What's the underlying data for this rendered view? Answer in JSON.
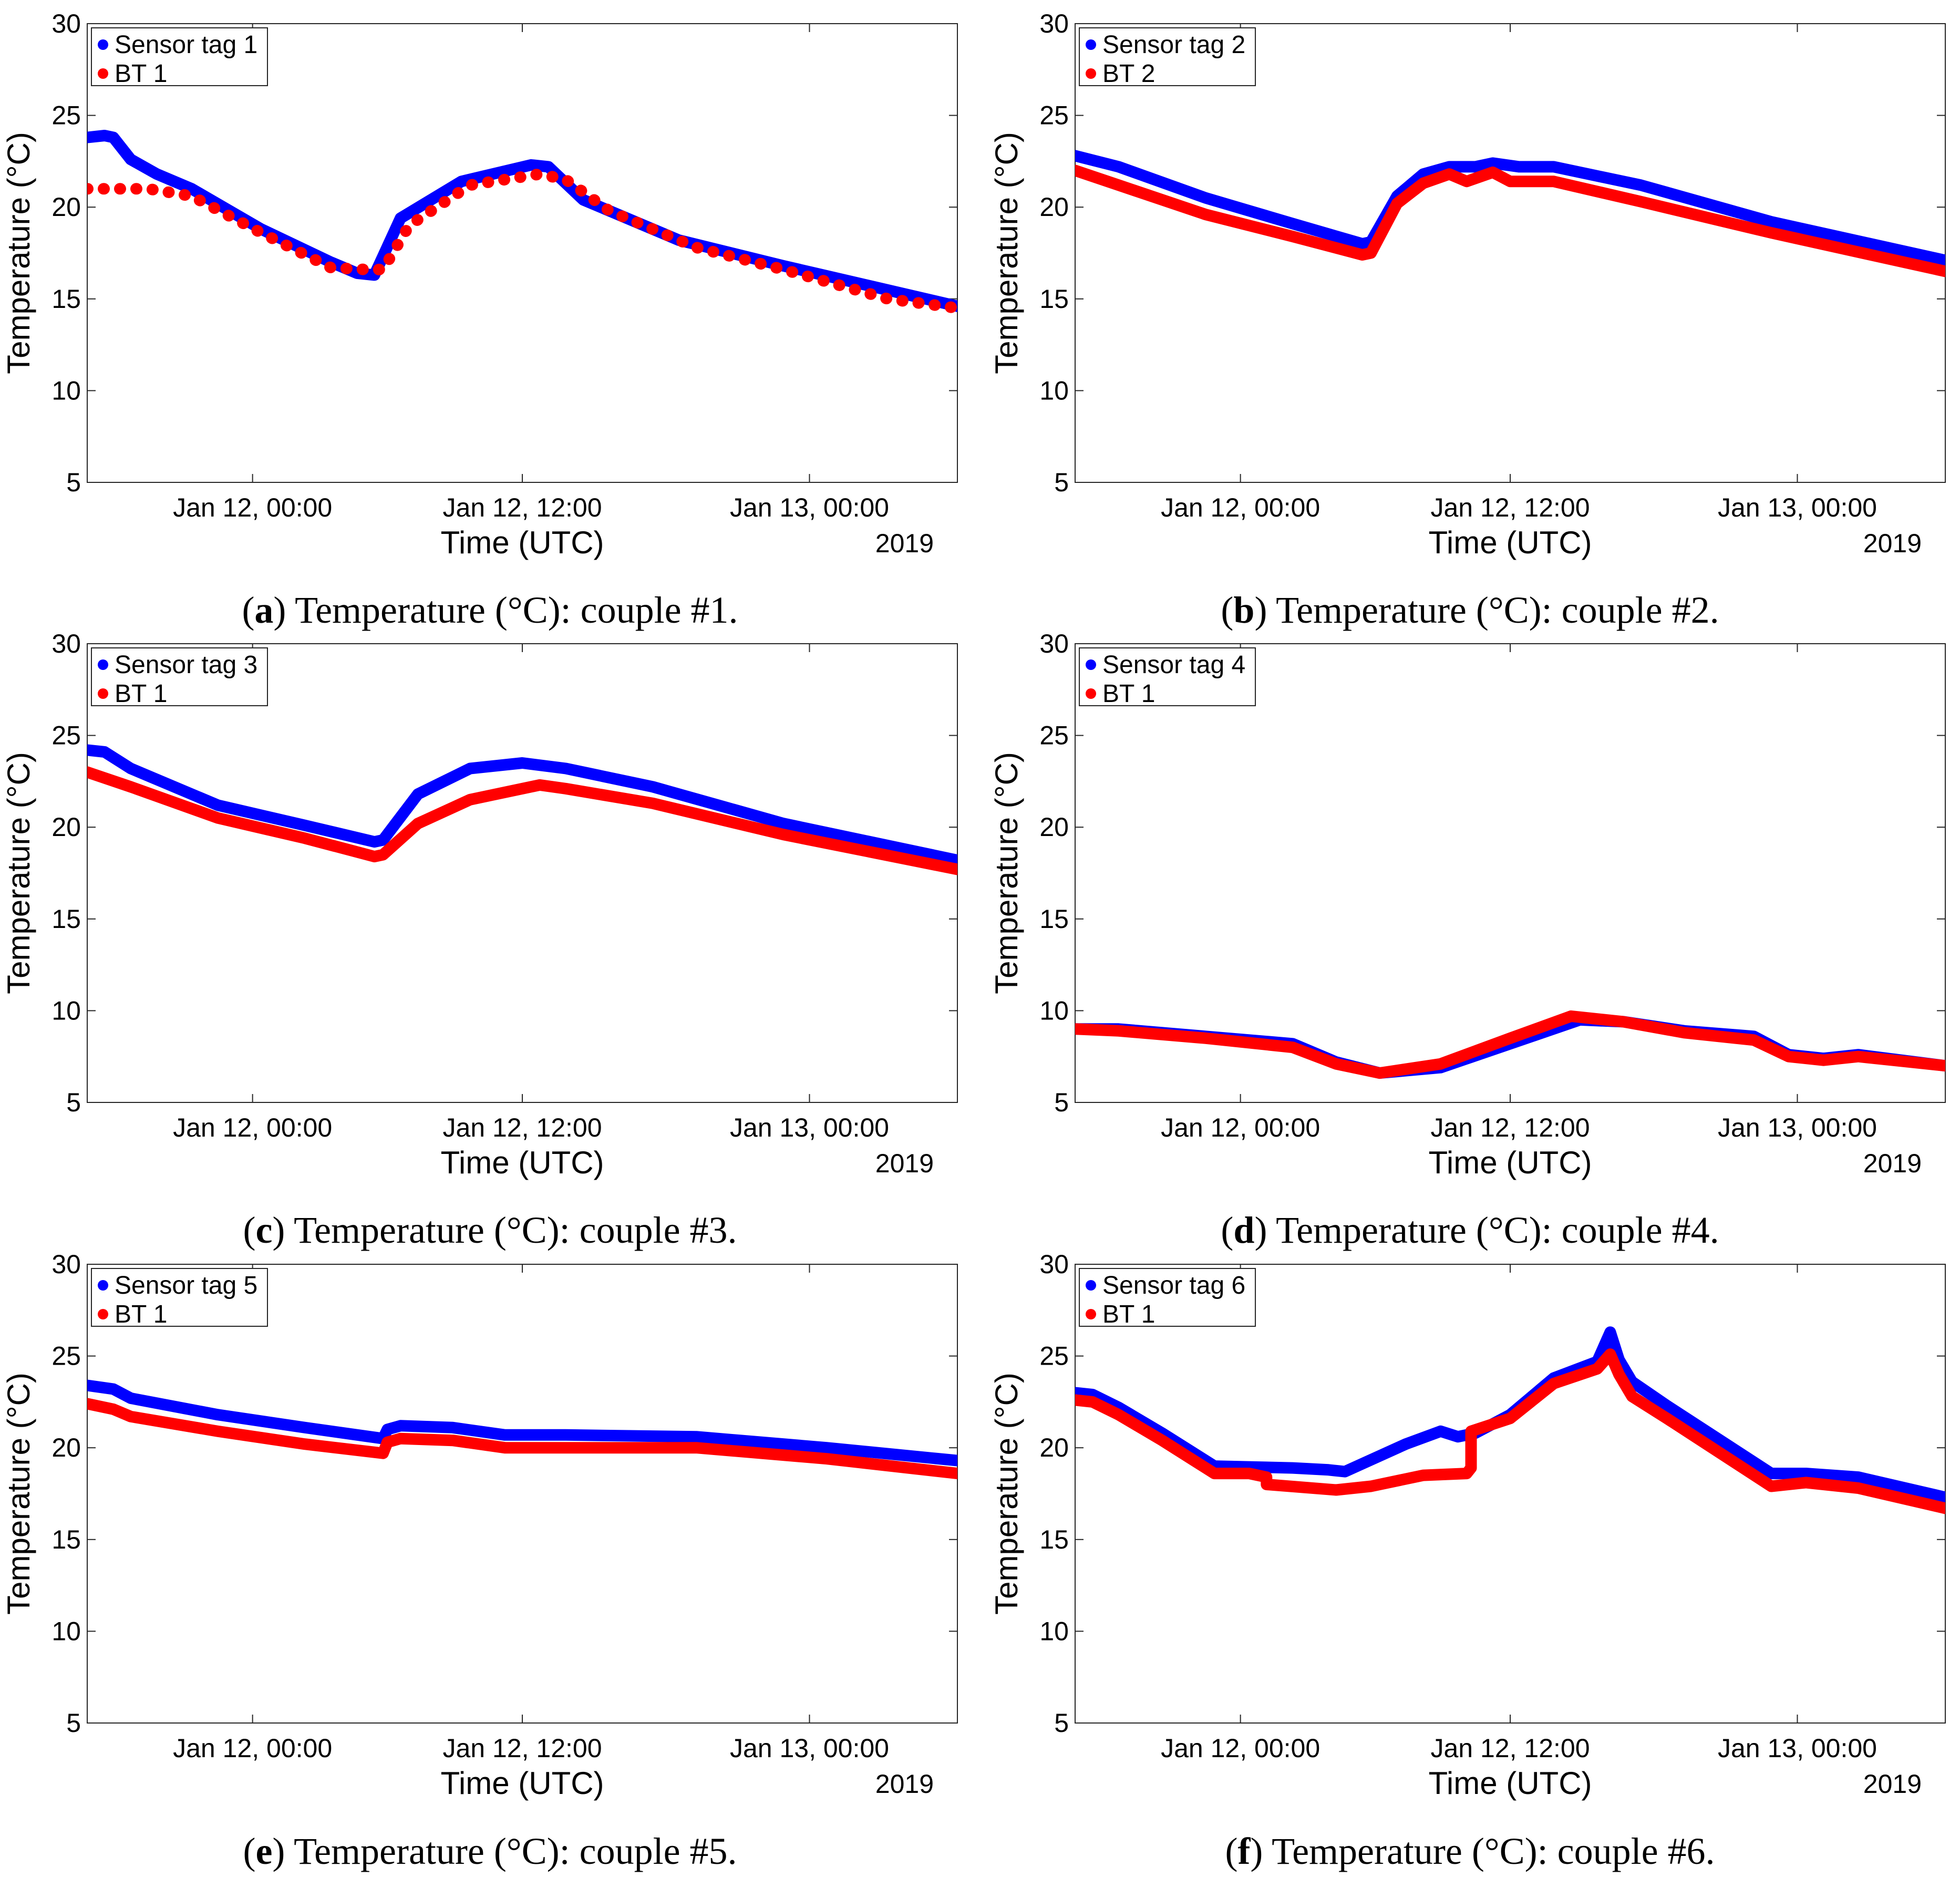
{
  "colors": {
    "sensor": "#0000ff",
    "bt": "#ff0000"
  },
  "chart_data": [
    {
      "type": "scatter",
      "panel": "a",
      "caption_letter": "a",
      "caption_text": "Temperature (°C): couple #1.",
      "ylabel": "Temperature (°C)",
      "xlabel": "Time (UTC)",
      "year_label": "2019",
      "ylim": [
        5,
        30
      ],
      "yticks": [
        5,
        10,
        15,
        20,
        25,
        30
      ],
      "xlim": [
        0,
        1
      ],
      "xticks": [
        {
          "x": 0.19,
          "label": "Jan 12, 00:00"
        },
        {
          "x": 0.5,
          "label": "Jan 12, 12:00"
        },
        {
          "x": 0.83,
          "label": "Jan 13, 00:00"
        }
      ],
      "legend": [
        "Sensor tag 1",
        "BT 1"
      ],
      "series": [
        {
          "name": "Sensor tag 1",
          "color": "#0000ff",
          "dashed": false,
          "x": [
            0,
            0.02,
            0.03,
            0.05,
            0.08,
            0.12,
            0.2,
            0.28,
            0.31,
            0.33,
            0.36,
            0.43,
            0.51,
            0.53,
            0.57,
            0.68,
            0.8,
            1
          ],
          "y": [
            23.8,
            23.9,
            23.8,
            22.6,
            21.8,
            21,
            18.8,
            17,
            16.4,
            16.3,
            19.4,
            21.4,
            22.3,
            22.2,
            20.4,
            18.2,
            16.8,
            14.6
          ]
        },
        {
          "name": "BT 1",
          "color": "#ff0000",
          "dashed": true,
          "x": [
            0,
            0.02,
            0.04,
            0.07,
            0.12,
            0.2,
            0.28,
            0.32,
            0.34,
            0.37,
            0.44,
            0.52,
            0.55,
            0.6,
            0.7,
            0.8,
            0.92,
            1
          ],
          "y": [
            21,
            21,
            21,
            21,
            20.6,
            18.6,
            16.7,
            16.6,
            16.6,
            19,
            21.2,
            21.8,
            21.5,
            19.8,
            17.8,
            16.6,
            15,
            14.5
          ]
        }
      ]
    },
    {
      "type": "scatter",
      "panel": "b",
      "caption_letter": "b",
      "caption_text": "Temperature (°C): couple #2.",
      "ylabel": "Temperature (°C)",
      "xlabel": "Time (UTC)",
      "year_label": "2019",
      "ylim": [
        5,
        30
      ],
      "yticks": [
        5,
        10,
        15,
        20,
        25,
        30
      ],
      "xlim": [
        0,
        1
      ],
      "xticks": [
        {
          "x": 0.19,
          "label": "Jan 12, 00:00"
        },
        {
          "x": 0.5,
          "label": "Jan 12, 12:00"
        },
        {
          "x": 0.83,
          "label": "Jan 13, 00:00"
        }
      ],
      "legend": [
        "Sensor tag 2",
        "BT 2"
      ],
      "series": [
        {
          "name": "Sensor tag 2",
          "color": "#0000ff",
          "dashed": false,
          "x": [
            0,
            0.05,
            0.15,
            0.25,
            0.33,
            0.34,
            0.37,
            0.4,
            0.43,
            0.46,
            0.48,
            0.51,
            0.55,
            0.65,
            0.8,
            1
          ],
          "y": [
            22.8,
            22.2,
            20.5,
            19.1,
            18,
            18.1,
            20.6,
            21.8,
            22.2,
            22.2,
            22.4,
            22.2,
            22.2,
            21.2,
            19.2,
            17.1
          ]
        },
        {
          "name": "BT 2",
          "color": "#ff0000",
          "dashed": false,
          "x": [
            0,
            0.05,
            0.15,
            0.25,
            0.33,
            0.34,
            0.37,
            0.4,
            0.43,
            0.45,
            0.48,
            0.5,
            0.55,
            0.65,
            0.8,
            1
          ],
          "y": [
            22,
            21.2,
            19.6,
            18.4,
            17.4,
            17.5,
            20.2,
            21.3,
            21.8,
            21.4,
            21.9,
            21.4,
            21.4,
            20.3,
            18.6,
            16.5
          ]
        }
      ]
    },
    {
      "type": "scatter",
      "panel": "c",
      "caption_letter": "c",
      "caption_text": "Temperature (°C): couple #3.",
      "ylabel": "Temperature (°C)",
      "xlabel": "Time (UTC)",
      "year_label": "2019",
      "ylim": [
        5,
        30
      ],
      "yticks": [
        5,
        10,
        15,
        20,
        25,
        30
      ],
      "xlim": [
        0,
        1
      ],
      "xticks": [
        {
          "x": 0.19,
          "label": "Jan 12, 00:00"
        },
        {
          "x": 0.5,
          "label": "Jan 12, 12:00"
        },
        {
          "x": 0.83,
          "label": "Jan 13, 00:00"
        }
      ],
      "legend": [
        "Sensor tag 3",
        "BT 1"
      ],
      "series": [
        {
          "name": "Sensor tag 3",
          "color": "#0000ff",
          "dashed": false,
          "x": [
            0,
            0.02,
            0.05,
            0.15,
            0.25,
            0.33,
            0.34,
            0.38,
            0.44,
            0.5,
            0.55,
            0.65,
            0.8,
            1
          ],
          "y": [
            24.2,
            24.1,
            23.2,
            21.2,
            20.1,
            19.2,
            19.3,
            21.8,
            23.2,
            23.5,
            23.2,
            22.2,
            20.2,
            18.2
          ]
        },
        {
          "name": "BT 1",
          "color": "#ff0000",
          "dashed": false,
          "x": [
            0,
            0.05,
            0.15,
            0.25,
            0.33,
            0.34,
            0.38,
            0.44,
            0.52,
            0.55,
            0.65,
            0.8,
            1
          ],
          "y": [
            23,
            22.2,
            20.5,
            19.4,
            18.4,
            18.5,
            20.2,
            21.5,
            22.3,
            22.1,
            21.3,
            19.6,
            17.7
          ]
        }
      ]
    },
    {
      "type": "scatter",
      "panel": "d",
      "caption_letter": "d",
      "caption_text": "Temperature (°C): couple #4.",
      "ylabel": "Temperature (°C)",
      "xlabel": "Time (UTC)",
      "year_label": "2019",
      "ylim": [
        5,
        30
      ],
      "yticks": [
        5,
        10,
        15,
        20,
        25,
        30
      ],
      "xlim": [
        0,
        1
      ],
      "xticks": [
        {
          "x": 0.19,
          "label": "Jan 12, 00:00"
        },
        {
          "x": 0.5,
          "label": "Jan 12, 12:00"
        },
        {
          "x": 0.83,
          "label": "Jan 13, 00:00"
        }
      ],
      "legend": [
        "Sensor tag 4",
        "BT 1"
      ],
      "series": [
        {
          "name": "Sensor tag 4",
          "color": "#0000ff",
          "dashed": false,
          "x": [
            0,
            0.05,
            0.15,
            0.25,
            0.3,
            0.35,
            0.42,
            0.5,
            0.58,
            0.63,
            0.7,
            0.78,
            0.82,
            0.86,
            0.9,
            1
          ],
          "y": [
            9,
            9,
            8.6,
            8.2,
            7.2,
            6.6,
            6.9,
            8.2,
            9.5,
            9.4,
            8.9,
            8.6,
            7.6,
            7.4,
            7.6,
            7
          ]
        },
        {
          "name": "BT 1",
          "color": "#ff0000",
          "dashed": false,
          "x": [
            0,
            0.05,
            0.15,
            0.25,
            0.3,
            0.35,
            0.42,
            0.5,
            0.57,
            0.63,
            0.7,
            0.78,
            0.82,
            0.86,
            0.9,
            1
          ],
          "y": [
            9,
            8.9,
            8.5,
            8,
            7.1,
            6.6,
            7.1,
            8.5,
            9.7,
            9.4,
            8.8,
            8.4,
            7.5,
            7.3,
            7.5,
            7
          ]
        }
      ]
    },
    {
      "type": "scatter",
      "panel": "e",
      "caption_letter": "e",
      "caption_text": "Temperature (°C): couple #5.",
      "ylabel": "Temperature (°C)",
      "xlabel": "Time (UTC)",
      "year_label": "2019",
      "ylim": [
        5,
        30
      ],
      "yticks": [
        5,
        10,
        15,
        20,
        25,
        30
      ],
      "xlim": [
        0,
        1
      ],
      "xticks": [
        {
          "x": 0.19,
          "label": "Jan 12, 00:00"
        },
        {
          "x": 0.5,
          "label": "Jan 12, 12:00"
        },
        {
          "x": 0.83,
          "label": "Jan 13, 00:00"
        }
      ],
      "legend": [
        "Sensor tag 5",
        "BT 1"
      ],
      "series": [
        {
          "name": "Sensor tag 5",
          "color": "#0000ff",
          "dashed": false,
          "x": [
            0,
            0.03,
            0.05,
            0.15,
            0.25,
            0.34,
            0.345,
            0.36,
            0.42,
            0.48,
            0.55,
            0.7,
            0.85,
            1
          ],
          "y": [
            23.4,
            23.2,
            22.7,
            21.8,
            21.1,
            20.5,
            21,
            21.2,
            21.1,
            20.7,
            20.7,
            20.6,
            20,
            19.3
          ]
        },
        {
          "name": "BT 1",
          "color": "#ff0000",
          "dashed": false,
          "x": [
            0,
            0.03,
            0.05,
            0.15,
            0.25,
            0.34,
            0.345,
            0.36,
            0.42,
            0.48,
            0.55,
            0.7,
            0.85,
            1
          ],
          "y": [
            22.4,
            22.1,
            21.7,
            20.9,
            20.2,
            19.7,
            20.3,
            20.5,
            20.4,
            20,
            20,
            20,
            19.4,
            18.6
          ]
        }
      ]
    },
    {
      "type": "scatter",
      "panel": "f",
      "caption_letter": "f",
      "caption_text": "Temperature (°C): couple #6.",
      "ylabel": "Temperature (°C)",
      "xlabel": "Time (UTC)",
      "year_label": "2019",
      "ylim": [
        5,
        30
      ],
      "yticks": [
        5,
        10,
        15,
        20,
        25,
        30
      ],
      "xlim": [
        0,
        1
      ],
      "xticks": [
        {
          "x": 0.19,
          "label": "Jan 12, 00:00"
        },
        {
          "x": 0.5,
          "label": "Jan 12, 12:00"
        },
        {
          "x": 0.83,
          "label": "Jan 13, 00:00"
        }
      ],
      "legend": [
        "Sensor tag 6",
        "BT 1"
      ],
      "series": [
        {
          "name": "Sensor tag 6",
          "color": "#0000ff",
          "dashed": false,
          "x": [
            0,
            0.02,
            0.05,
            0.1,
            0.16,
            0.25,
            0.29,
            0.31,
            0.38,
            0.42,
            0.44,
            0.46,
            0.5,
            0.55,
            0.6,
            0.615,
            0.625,
            0.64,
            0.68,
            0.8,
            0.84,
            0.9,
            1
          ],
          "y": [
            23,
            22.9,
            22.2,
            20.8,
            19,
            18.9,
            18.8,
            18.7,
            20.2,
            20.9,
            20.6,
            20.8,
            21.8,
            23.8,
            24.7,
            26.3,
            24.8,
            23.6,
            22.3,
            18.6,
            18.6,
            18.4,
            17.3
          ]
        },
        {
          "name": "BT 1",
          "color": "#ff0000",
          "dashed": false,
          "x": [
            0,
            0.02,
            0.05,
            0.1,
            0.16,
            0.2,
            0.22,
            0.22,
            0.3,
            0.34,
            0.4,
            0.45,
            0.455,
            0.455,
            0.5,
            0.55,
            0.6,
            0.615,
            0.625,
            0.64,
            0.68,
            0.8,
            0.84,
            0.9,
            1
          ],
          "y": [
            22.6,
            22.5,
            21.8,
            20.4,
            18.6,
            18.6,
            18.4,
            18,
            17.7,
            17.9,
            18.5,
            18.6,
            18.9,
            20.9,
            21.6,
            23.5,
            24.3,
            25.1,
            24,
            22.8,
            21.6,
            17.9,
            18.1,
            17.8,
            16.7
          ]
        }
      ]
    }
  ]
}
